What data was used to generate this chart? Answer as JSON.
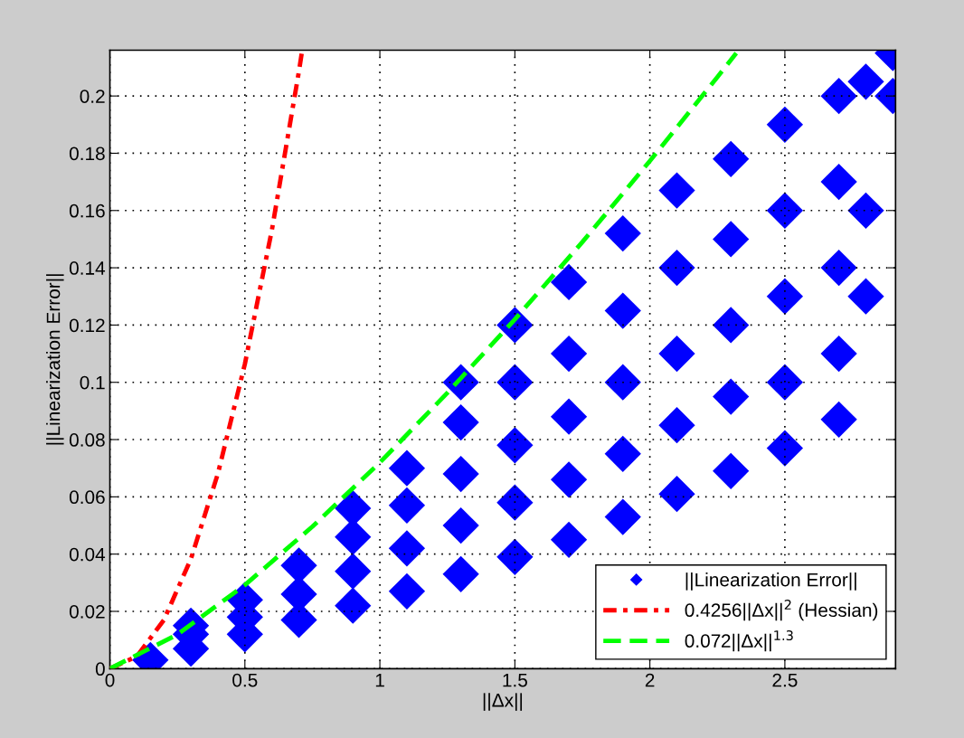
{
  "chart_data": {
    "type": "scatter",
    "xlabel": "||Δx||",
    "ylabel": "||Linearization Error||",
    "xlim": [
      0,
      2.91
    ],
    "ylim": [
      0,
      0.216
    ],
    "xticks": [
      0,
      0.5,
      1,
      1.5,
      2,
      2.5
    ],
    "yticks": [
      0,
      0.02,
      0.04,
      0.06,
      0.08,
      0.1,
      0.12,
      0.14,
      0.16,
      0.18,
      0.2
    ],
    "grid": true,
    "legend": "bottom right",
    "series": [
      {
        "name": "||Linearization Error||",
        "color": "#0000ff",
        "marker": "diamond",
        "x": [
          0.15,
          0.3,
          0.3,
          0.3,
          0.5,
          0.5,
          0.5,
          0.7,
          0.7,
          0.7,
          0.9,
          0.9,
          0.9,
          0.9,
          1.1,
          1.1,
          1.1,
          1.1,
          1.3,
          1.3,
          1.3,
          1.3,
          1.3,
          1.5,
          1.5,
          1.5,
          1.5,
          1.5,
          1.7,
          1.7,
          1.7,
          1.7,
          1.7,
          1.9,
          1.9,
          1.9,
          1.9,
          1.9,
          2.1,
          2.1,
          2.1,
          2.1,
          2.1,
          2.3,
          2.3,
          2.3,
          2.3,
          2.3,
          2.5,
          2.5,
          2.5,
          2.5,
          2.5,
          2.7,
          2.7,
          2.7,
          2.7,
          2.7,
          2.8,
          2.8,
          2.8,
          2.9,
          2.9
        ],
        "values": [
          0.003,
          0.007,
          0.012,
          0.015,
          0.012,
          0.018,
          0.024,
          0.017,
          0.026,
          0.036,
          0.022,
          0.034,
          0.046,
          0.056,
          0.027,
          0.042,
          0.057,
          0.07,
          0.033,
          0.05,
          0.068,
          0.086,
          0.1,
          0.039,
          0.058,
          0.078,
          0.1,
          0.12,
          0.045,
          0.066,
          0.088,
          0.11,
          0.135,
          0.053,
          0.075,
          0.1,
          0.125,
          0.152,
          0.061,
          0.085,
          0.11,
          0.14,
          0.167,
          0.069,
          0.095,
          0.12,
          0.15,
          0.178,
          0.077,
          0.1,
          0.13,
          0.16,
          0.19,
          0.087,
          0.11,
          0.14,
          0.17,
          0.2,
          0.13,
          0.16,
          0.205,
          0.2,
          0.215
        ]
      },
      {
        "name": "0.4256||Δx||$^{2}$ (Hessian)",
        "type": "line",
        "color": "#ff0000",
        "line_style": "dashdot",
        "marker": "none",
        "x": [
          0,
          0.1,
          0.2,
          0.3,
          0.4,
          0.5,
          0.6,
          0.7,
          0.712
        ],
        "values": [
          0,
          0.0043,
          0.017,
          0.0383,
          0.0681,
          0.1064,
          0.1532,
          0.2085,
          0.2158
        ]
      },
      {
        "name": "0.072||Δx||$^{1.3}$",
        "type": "line",
        "color": "#00ff00",
        "line_style": "dashed",
        "marker": "none",
        "x": [
          0,
          0.25,
          0.5,
          0.75,
          1,
          1.25,
          1.5,
          1.75,
          2,
          2.25,
          2.32
        ],
        "values": [
          0,
          0.0119,
          0.0292,
          0.0496,
          0.072,
          0.0963,
          0.122,
          0.149,
          0.1773,
          0.2066,
          0.215
        ]
      }
    ]
  }
}
